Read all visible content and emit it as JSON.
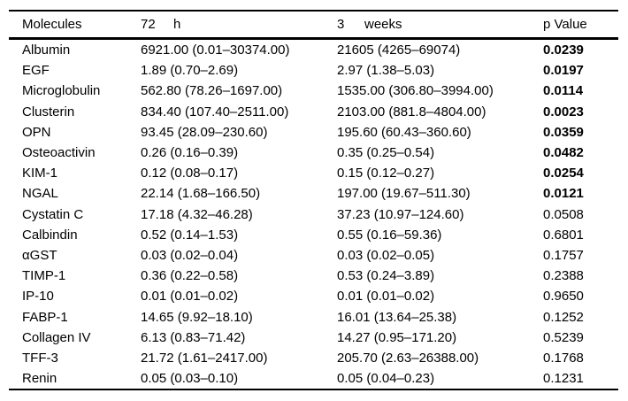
{
  "table": {
    "columns": [
      {
        "label": "Molecules"
      },
      {
        "value": "72",
        "unit": "h"
      },
      {
        "value": "3",
        "unit": "weeks"
      },
      {
        "label": "p Value"
      }
    ],
    "rows": [
      {
        "molecule": "Albumin",
        "h72": "6921.00 (0.01–30374.00)",
        "w3": "21605 (4265–69074)",
        "p": "0.0239",
        "significant": true
      },
      {
        "molecule": "EGF",
        "h72": "1.89 (0.70–2.69)",
        "w3": "2.97 (1.38–5.03)",
        "p": "0.0197",
        "significant": true
      },
      {
        "molecule": "Microglobulin",
        "h72": "562.80 (78.26–1697.00)",
        "w3": "1535.00 (306.80–3994.00)",
        "p": "0.0114",
        "significant": true
      },
      {
        "molecule": "Clusterin",
        "h72": "834.40 (107.40–2511.00)",
        "w3": "2103.00 (881.8–4804.00)",
        "p": "0.0023",
        "significant": true
      },
      {
        "molecule": "OPN",
        "h72": "93.45 (28.09–230.60)",
        "w3": "195.60 (60.43–360.60)",
        "p": "0.0359",
        "significant": true
      },
      {
        "molecule": "Osteoactivin",
        "h72": "0.26 (0.16–0.39)",
        "w3": "0.35 (0.25–0.54)",
        "p": "0.0482",
        "significant": true
      },
      {
        "molecule": "KIM-1",
        "h72": "0.12 (0.08–0.17)",
        "w3": "0.15 (0.12–0.27)",
        "p": "0.0254",
        "significant": true
      },
      {
        "molecule": "NGAL",
        "h72": "22.14 (1.68–166.50)",
        "w3": "197.00 (19.67–511.30)",
        "p": "0.0121",
        "significant": true
      },
      {
        "molecule": "Cystatin C",
        "h72": "17.18 (4.32–46.28)",
        "w3": "37.23 (10.97–124.60)",
        "p": "0.0508",
        "significant": false
      },
      {
        "molecule": "Calbindin",
        "h72": "0.52 (0.14–1.53)",
        "w3": "0.55 (0.16–59.36)",
        "p": "0.6801",
        "significant": false
      },
      {
        "molecule": "αGST",
        "h72": "0.03 (0.02–0.04)",
        "w3": "0.03 (0.02–0.05)",
        "p": "0.1757",
        "significant": false
      },
      {
        "molecule": "TIMP-1",
        "h72": "0.36 (0.22–0.58)",
        "w3": "0.53 (0.24–3.89)",
        "p": "0.2388",
        "significant": false
      },
      {
        "molecule": "IP-10",
        "h72": "0.01 (0.01–0.02)",
        "w3": "0.01 (0.01–0.02)",
        "p": "0.9650",
        "significant": false
      },
      {
        "molecule": "FABP-1",
        "h72": "14.65 (9.92–18.10)",
        "w3": "16.01 (13.64–25.38)",
        "p": "0.1252",
        "significant": false
      },
      {
        "molecule": "Collagen IV",
        "h72": "6.13 (0.83–71.42)",
        "w3": "14.27 (0.95–171.20)",
        "p": "0.5239",
        "significant": false
      },
      {
        "molecule": "TFF-3",
        "h72": "21.72 (1.61–2417.00)",
        "w3": "205.70 (2.63–26388.00)",
        "p": "0.1768",
        "significant": false
      },
      {
        "molecule": "Renin",
        "h72": "0.05 (0.03–0.10)",
        "w3": "0.05 (0.04–0.23)",
        "p": "0.1231",
        "significant": false
      }
    ]
  }
}
